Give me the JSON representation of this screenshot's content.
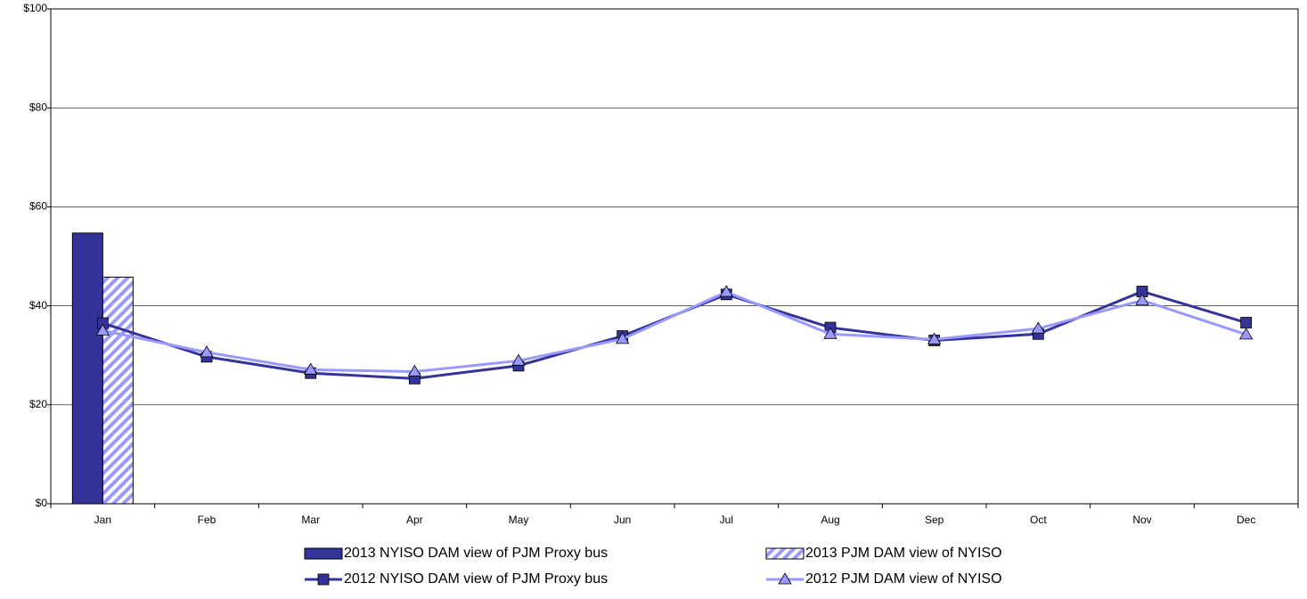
{
  "chart_data": {
    "type": "bar",
    "categories": [
      "Jan",
      "Feb",
      "Mar",
      "Apr",
      "May",
      "Jun",
      "Jul",
      "Aug",
      "Sep",
      "Oct",
      "Nov",
      "Dec"
    ],
    "series": [
      {
        "name": "2013 NYISO DAM view of PJM Proxy bus",
        "type": "bar",
        "color": "#333399",
        "pattern": "solid",
        "values": [
          54.7,
          null,
          null,
          null,
          null,
          null,
          null,
          null,
          null,
          null,
          null,
          null
        ]
      },
      {
        "name": "2013 PJM DAM view of NYISO",
        "type": "bar",
        "color": "#9999ff",
        "pattern": "hatch",
        "values": [
          45.8,
          null,
          null,
          null,
          null,
          null,
          null,
          null,
          null,
          null,
          null,
          null
        ]
      },
      {
        "name": "2012 NYISO DAM view of PJM Proxy bus",
        "type": "line",
        "color": "#333399",
        "marker": "square",
        "values": [
          36.5,
          29.7,
          26.4,
          25.3,
          27.9,
          33.9,
          42.3,
          35.6,
          33.0,
          34.3,
          42.9,
          36.6
        ]
      },
      {
        "name": "2012 PJM DAM view of NYISO",
        "type": "line",
        "color": "#9999ff",
        "marker": "triangle",
        "values": [
          35.0,
          30.6,
          27.1,
          26.7,
          28.9,
          33.3,
          42.8,
          34.3,
          33.2,
          35.4,
          41.1,
          34.2
        ]
      }
    ],
    "ylim": [
      0,
      100
    ],
    "yticks": [
      {
        "value": 0,
        "label": "$0"
      },
      {
        "value": 20,
        "label": "$20"
      },
      {
        "value": 40,
        "label": "$40"
      },
      {
        "value": 60,
        "label": "$60"
      },
      {
        "value": 80,
        "label": "$80"
      },
      {
        "value": 100,
        "label": "$100"
      }
    ],
    "grid": true,
    "legend": "bottom"
  }
}
